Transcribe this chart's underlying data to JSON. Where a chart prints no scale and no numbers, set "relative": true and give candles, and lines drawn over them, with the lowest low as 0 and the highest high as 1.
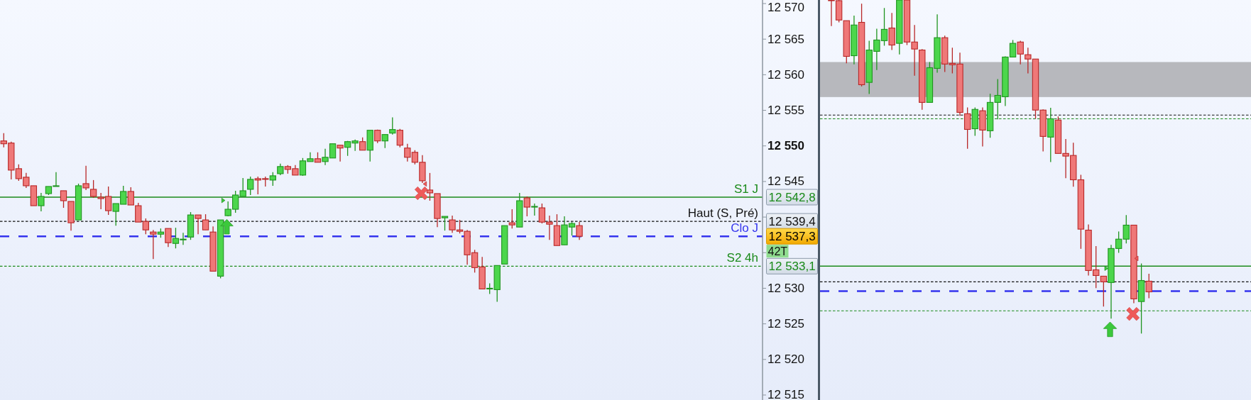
{
  "chart_data": [
    {
      "type": "candlestick",
      "categories": [
        null,
        null,
        null,
        null,
        null,
        null,
        null,
        null,
        null,
        null,
        null,
        null,
        null,
        null,
        null,
        null,
        null,
        null,
        null,
        null,
        null,
        null,
        null,
        null,
        null,
        null,
        null,
        null,
        null,
        null,
        null,
        null,
        null,
        null,
        null,
        null,
        null,
        null,
        null,
        null,
        null,
        null,
        null,
        null,
        null,
        null,
        null,
        null,
        null,
        null,
        null,
        null,
        null,
        null,
        null,
        null,
        null,
        null,
        null,
        null,
        null,
        null,
        null,
        null,
        null,
        null,
        null,
        null,
        null,
        null,
        null,
        null,
        null,
        null,
        null,
        null,
        null,
        null,
        null,
        null,
        null,
        null,
        null,
        null,
        null,
        null,
        null,
        null,
        null,
        null,
        null,
        null,
        null,
        null,
        null,
        null,
        null,
        null,
        null,
        null,
        null,
        null
      ],
      "ohlc": [
        [
          12550.7,
          12551.8,
          12549.8,
          12550.3
        ],
        [
          12550.4,
          12550.6,
          12545.3,
          12546.6
        ],
        [
          12546.8,
          12547.4,
          12545.1,
          12545.4
        ],
        [
          12545.6,
          12546.2,
          12544.1,
          12544.4
        ],
        [
          12544.4,
          12544.4,
          12541.6,
          12541.6
        ],
        [
          12541.6,
          12543.4,
          12540.8,
          12542.9
        ],
        [
          12543.3,
          12544.3,
          12543.1,
          12544.3
        ],
        [
          12544.3,
          12546.3,
          12544.3,
          12544.4
        ],
        [
          12543.7,
          12543.7,
          12541.3,
          12542.3
        ],
        [
          12542.2,
          12542.2,
          12538.1,
          12539.2
        ],
        [
          12539.6,
          12544.7,
          12539.6,
          12544.4
        ],
        [
          12544.7,
          12547.2,
          12543.8,
          12544.1
        ],
        [
          12543.9,
          12545.2,
          12542.7,
          12542.9
        ],
        [
          12542.8,
          12543.4,
          12541.1,
          12542.6
        ],
        [
          12542.9,
          12544.3,
          12540.3,
          12540.9
        ],
        [
          12540.8,
          12541.9,
          12538.8,
          12541.9
        ],
        [
          12541.8,
          12544.4,
          12541.8,
          12543.6
        ],
        [
          12543.6,
          12544.2,
          12541.7,
          12541.7
        ],
        [
          12541.6,
          12542.0,
          12539.3,
          12539.3
        ],
        [
          12539.4,
          12539.8,
          12537.6,
          12538.2
        ],
        [
          12537.9,
          12538.2,
          12534.1,
          12537.6
        ],
        [
          12537.6,
          12538.4,
          12537.1,
          12537.9
        ],
        [
          12538.4,
          12538.4,
          12535.8,
          12536.4
        ],
        [
          12536.3,
          12538.5,
          12535.6,
          12537.0
        ],
        [
          12536.8,
          12537.8,
          12536.1,
          12536.9
        ],
        [
          12537.2,
          12540.7,
          12536.8,
          12540.3
        ],
        [
          12540.3,
          12540.3,
          12537.6,
          12539.8
        ],
        [
          12539.6,
          12540.4,
          12538.2,
          12538.2
        ],
        [
          12537.9,
          12538.7,
          12532.4,
          12532.4
        ],
        [
          12531.7,
          12539.6,
          12531.4,
          12539.6
        ],
        [
          12540.2,
          12542.2,
          12540.1,
          12541.1
        ],
        [
          12541.1,
          12543.7,
          12540.6,
          12543.1
        ],
        [
          12542.9,
          12545.5,
          12542.9,
          12543.7
        ],
        [
          12543.9,
          12545.7,
          12543.1,
          12545.3
        ],
        [
          12545.4,
          12545.7,
          12543.2,
          12545.2
        ],
        [
          12545.4,
          12545.7,
          12544.3,
          12545.3
        ],
        [
          12545.2,
          12546.3,
          12544.4,
          12545.8
        ],
        [
          12546.1,
          12547.5,
          12545.9,
          12547.1
        ],
        [
          12547.1,
          12547.3,
          12546.1,
          12546.7
        ],
        [
          12546.8,
          12547.3,
          12545.9,
          12545.9
        ],
        [
          12545.9,
          12548.3,
          12545.8,
          12547.9
        ],
        [
          12547.8,
          12549.1,
          12547.8,
          12548.2
        ],
        [
          12548.2,
          12549.1,
          12547.7,
          12547.7
        ],
        [
          12547.8,
          12549.6,
          12547.3,
          12548.4
        ],
        [
          12548.3,
          12550.3,
          12548.3,
          12550.3
        ],
        [
          12550.1,
          12550.1,
          12547.8,
          12549.7
        ],
        [
          12549.8,
          12550.7,
          12548.6,
          12550.6
        ],
        [
          12550.4,
          12550.9,
          12549.3,
          12550.7
        ],
        [
          12550.6,
          12551.2,
          12549.4,
          12549.4
        ],
        [
          12549.4,
          12552.2,
          12547.8,
          12552.2
        ],
        [
          12552.2,
          12552.3,
          12550.4,
          12550.7
        ],
        [
          12550.7,
          12551.6,
          12549.7,
          12551.6
        ],
        [
          12551.8,
          12554.0,
          12551.6,
          12552.3
        ],
        [
          12552.2,
          12552.4,
          12549.8,
          12550.1
        ],
        [
          12549.7,
          12550.3,
          12547.8,
          12548.4
        ],
        [
          12549.1,
          12549.4,
          12547.4,
          12547.7
        ],
        [
          12547.7,
          12548.7,
          12544.8,
          12545.1
        ],
        [
          12543.8,
          12546.2,
          12542.3,
          12543.4
        ],
        [
          12543.3,
          12543.3,
          12538.6,
          12539.8
        ],
        [
          12539.9,
          12540.1,
          12538.1,
          12540.1
        ],
        [
          12539.6,
          12540.2,
          12537.8,
          12538.2
        ],
        [
          12538.2,
          12539.6,
          12537.7,
          12538.0
        ],
        [
          12538.0,
          12538.2,
          12533.3,
          12534.7
        ],
        [
          12535.0,
          12535.4,
          12532.2,
          12532.9
        ],
        [
          12533.0,
          12534.4,
          12529.9,
          12529.9
        ],
        [
          12529.9,
          12530.7,
          12529.2,
          12530.0
        ],
        [
          12529.8,
          12533.2,
          12528.1,
          12533.2
        ],
        [
          12533.4,
          12538.8,
          12533.4,
          12538.8
        ],
        [
          12539.2,
          12541.1,
          12538.4,
          12538.9
        ],
        [
          12538.6,
          12543.4,
          12538.6,
          12542.3
        ],
        [
          12542.7,
          12542.9,
          12540.1,
          12541.4
        ],
        [
          12541.4,
          12541.9,
          12540.2,
          12541.5
        ],
        [
          12541.3,
          12541.9,
          12539.1,
          12539.3
        ],
        [
          12539.3,
          12540.2,
          12536.8,
          12539.0
        ],
        [
          12538.8,
          12540.4,
          12536.0,
          12536.0
        ],
        [
          12536.1,
          12540.1,
          12536.1,
          12538.9
        ],
        [
          12538.6,
          12539.3,
          12537.4,
          12539.1
        ],
        [
          12538.8,
          12539.3,
          12536.8,
          12537.3
        ],
        null,
        null,
        null,
        null,
        null,
        null,
        null,
        null,
        null,
        null,
        null,
        null,
        null,
        null,
        null,
        null,
        null,
        null,
        null,
        null,
        null,
        null,
        null,
        null
      ],
      "colors": [
        "#ef7878",
        "#ef7878",
        "#ef7878",
        "#ef7878",
        "#ef7878",
        "#4cd64c",
        "#4cd64c",
        "#4cd64c",
        "#ef7878",
        "#ef7878",
        "#4cd64c",
        "#ef7878",
        "#ef7878",
        "#ef7878",
        "#ef7878",
        "#4cd64c",
        "#4cd64c",
        "#ef7878",
        "#ef7878",
        "#ef7878",
        "#ef7878",
        "#4cd64c",
        "#ef7878",
        "#4cd64c",
        "#4cd64c",
        "#4cd64c",
        "#ef7878",
        "#ef7878",
        "#ef7878",
        "#4cd64c",
        "#4cd64c",
        "#4cd64c",
        "#4cd64c",
        "#4cd64c",
        "#ef7878",
        "#ef7878",
        "#4cd64c",
        "#4cd64c",
        "#ef7878",
        "#ef7878",
        "#4cd64c",
        "#4cd64c",
        "#ef7878",
        "#4cd64c",
        "#4cd64c",
        "#ef7878",
        "#4cd64c",
        "#4cd64c",
        "#ef7878",
        "#4cd64c",
        "#ef7878",
        "#4cd64c",
        "#4cd64c",
        "#ef7878",
        "#ef7878",
        "#ef7878",
        "#ef7878",
        "#ef7878",
        "#ef7878",
        "#4cd64c",
        "#ef7878",
        "#ef7878",
        "#ef7878",
        "#ef7878",
        "#ef7878",
        "#4cd64c",
        "#4cd64c",
        "#4cd64c",
        "#ef7878",
        "#4cd64c",
        "#ef7878",
        "#4cd64c",
        "#ef7878",
        "#ef7878",
        "#ef7878",
        "#4cd64c",
        "#4cd64c",
        "#ef7878",
        null,
        null,
        null,
        null,
        null,
        null,
        null,
        null,
        null,
        null,
        null,
        null,
        null,
        null,
        null,
        null,
        null,
        null,
        null,
        null,
        null,
        null,
        null,
        null
      ],
      "ylim": [
        12514.3,
        12570.5
      ],
      "yticks": [
        {
          "value": 12515,
          "label": "12 515"
        },
        {
          "value": 12520,
          "label": "12 520"
        },
        {
          "value": 12525,
          "label": "12 525"
        },
        {
          "value": 12530,
          "label": "12 530"
        },
        {
          "value": 12535,
          "label": null
        },
        {
          "value": 12540,
          "label": null
        },
        {
          "value": 12545,
          "label": "12 545"
        },
        {
          "value": 12550,
          "label": "12 550"
        },
        {
          "value": 12555,
          "label": "12 555"
        },
        {
          "value": 12560,
          "label": "12 560"
        },
        {
          "value": 12565,
          "label": "12 565"
        },
        {
          "value": 12570,
          "label": "12 570"
        }
      ],
      "tick_labels": "y",
      "ref_lines": [
        {
          "axis": "y",
          "value": 12542.8,
          "label": "S1 J",
          "color": "#1a8a1a",
          "line_style": "solid"
        },
        {
          "axis": "y",
          "value": 12539.4,
          "label": "Haut (S, Pré)",
          "color": "#111111",
          "line_style": "dotted"
        },
        {
          "axis": "y",
          "value": 12537.3,
          "label": "Clo J",
          "color": "#3535ee",
          "line_style": "dashed"
        },
        {
          "axis": "y",
          "value": 12533.1,
          "label": "S2 4h",
          "color": "#1a8a1a",
          "line_style": "dotted"
        }
      ],
      "annotations": [
        "12 542,8",
        "12 539,4",
        "12 537,3",
        "12 533,1",
        "42T"
      ]
    },
    {
      "type": "candlestick",
      "relative": true,
      "categories": [
        null,
        null,
        null,
        null,
        null,
        null,
        null,
        null,
        null,
        null,
        null,
        null,
        null,
        null,
        null,
        null,
        null,
        null,
        null,
        null,
        null,
        null,
        null,
        null,
        null,
        null,
        null,
        null,
        null,
        null,
        null,
        null,
        null,
        null,
        null,
        null,
        null,
        null,
        null,
        null,
        null,
        null,
        null,
        null,
        null,
        null,
        null,
        null,
        null,
        null,
        null,
        null,
        null,
        null,
        null,
        null,
        null
      ],
      "ohlc": [
        null,
        [
          1,
          1,
          0.922,
          1
        ],
        [
          0.998,
          1,
          0.933,
          0.94
        ],
        [
          0.938,
          0.938,
          0.81,
          0.831
        ],
        [
          0.833,
          0.953,
          0.807,
          0.925
        ],
        [
          0.933,
          0.989,
          0.741,
          0.746
        ],
        [
          0.753,
          0.878,
          0.718,
          0.85
        ],
        [
          0.846,
          0.914,
          0.79,
          0.88
        ],
        [
          0.878,
          0.976,
          0.863,
          0.912
        ],
        [
          0.916,
          0.961,
          0.85,
          0.865
        ],
        [
          0.87,
          1,
          0.837,
          1
        ],
        [
          1,
          1,
          0.865,
          0.874
        ],
        [
          0.874,
          0.925,
          0.773,
          0.853
        ],
        [
          0.85,
          0.853,
          0.671,
          0.693
        ],
        [
          0.693,
          0.814,
          0.693,
          0.797
        ],
        [
          0.795,
          0.957,
          0.782,
          0.887
        ],
        [
          0.887,
          0.893,
          0.784,
          0.808
        ],
        [
          0.81,
          0.857,
          0.78,
          0.806
        ],
        [
          0.808,
          0.842,
          0.653,
          0.663
        ],
        [
          0.659,
          0.678,
          0.554,
          0.612
        ],
        [
          0.614,
          0.678,
          0.593,
          0.672
        ],
        [
          0.668,
          0.678,
          0.561,
          0.61
        ],
        [
          0.608,
          0.719,
          0.587,
          0.693
        ],
        [
          0.693,
          0.763,
          0.642,
          0.714
        ],
        [
          0.71,
          0.831,
          0.682,
          0.829
        ],
        [
          0.829,
          0.88,
          0.829,
          0.87
        ],
        [
          0.874,
          0.878,
          0.807,
          0.838
        ],
        [
          0.836,
          0.857,
          0.78,
          0.823
        ],
        [
          0.823,
          0.823,
          0.644,
          0.67
        ],
        [
          0.67,
          0.672,
          0.546,
          0.591
        ],
        [
          0.589,
          0.677,
          0.514,
          0.644
        ],
        [
          0.64,
          0.651,
          0.54,
          0.54
        ],
        [
          0.54,
          0.583,
          0.466,
          0.532
        ],
        [
          0.534,
          0.572,
          0.44,
          0.461
        ],
        [
          0.461,
          0.476,
          0.254,
          0.313
        ],
        [
          0.31,
          0.327,
          0.174,
          0.189
        ],
        [
          0.191,
          0.262,
          0.136,
          0.174
        ],
        [
          0.172,
          0.172,
          0.081,
          0.155
        ],
        [
          0.153,
          0.266,
          0.045,
          0.255
        ],
        [
          0.255,
          0.306,
          0.242,
          0.283
        ],
        [
          0.283,
          0.355,
          0.27,
          0.325
        ],
        [
          0.325,
          0.325,
          0.091,
          0.104
        ],
        [
          0.096,
          0.21,
          0,
          0.159
        ],
        [
          0.157,
          0.179,
          0.106,
          0.125
        ],
        null,
        null,
        null,
        null,
        null,
        null,
        null,
        null,
        null,
        null,
        null,
        null,
        null
      ],
      "colors": [
        null,
        "#ef7878",
        "#ef7878",
        "#ef7878",
        "#4cd64c",
        "#ef7878",
        "#4cd64c",
        "#4cd64c",
        "#4cd64c",
        "#ef7878",
        "#4cd64c",
        "#ef7878",
        "#ef7878",
        "#ef7878",
        "#4cd64c",
        "#4cd64c",
        "#ef7878",
        "#ef7878",
        "#ef7878",
        "#ef7878",
        "#4cd64c",
        "#ef7878",
        "#4cd64c",
        "#4cd64c",
        "#4cd64c",
        "#4cd64c",
        "#ef7878",
        "#ef7878",
        "#ef7878",
        "#ef7878",
        "#4cd64c",
        "#ef7878",
        "#ef7878",
        "#ef7878",
        "#ef7878",
        "#ef7878",
        "#ef7878",
        "#ef7878",
        "#4cd64c",
        "#4cd64c",
        "#4cd64c",
        "#ef7878",
        "#4cd64c",
        "#ef7878",
        null,
        null,
        null,
        null,
        null,
        null,
        null,
        null,
        null,
        null,
        null,
        null,
        null
      ],
      "ref_lines": [
        {
          "axis": "y",
          "value": 0.655,
          "color": "#111111",
          "line_style": "dotted"
        },
        {
          "axis": "y",
          "value": 0.644,
          "color": "#1a8a1a",
          "line_style": "dotted"
        },
        {
          "axis": "y",
          "value": 0.202,
          "color": "#1a8a1a",
          "line_style": "solid"
        },
        {
          "axis": "y",
          "value": 0.155,
          "color": "#111111",
          "line_style": "dotted"
        },
        {
          "axis": "y",
          "value": 0.127,
          "color": "#3535ee",
          "line_style": "dashed"
        },
        {
          "axis": "y",
          "value": 0.068,
          "color": "#1a8a1a",
          "line_style": "dotted"
        }
      ],
      "bands": [
        {
          "axis": "y",
          "from": 0.709,
          "to": 0.814,
          "color": "#b7b8bd"
        }
      ]
    }
  ]
}
